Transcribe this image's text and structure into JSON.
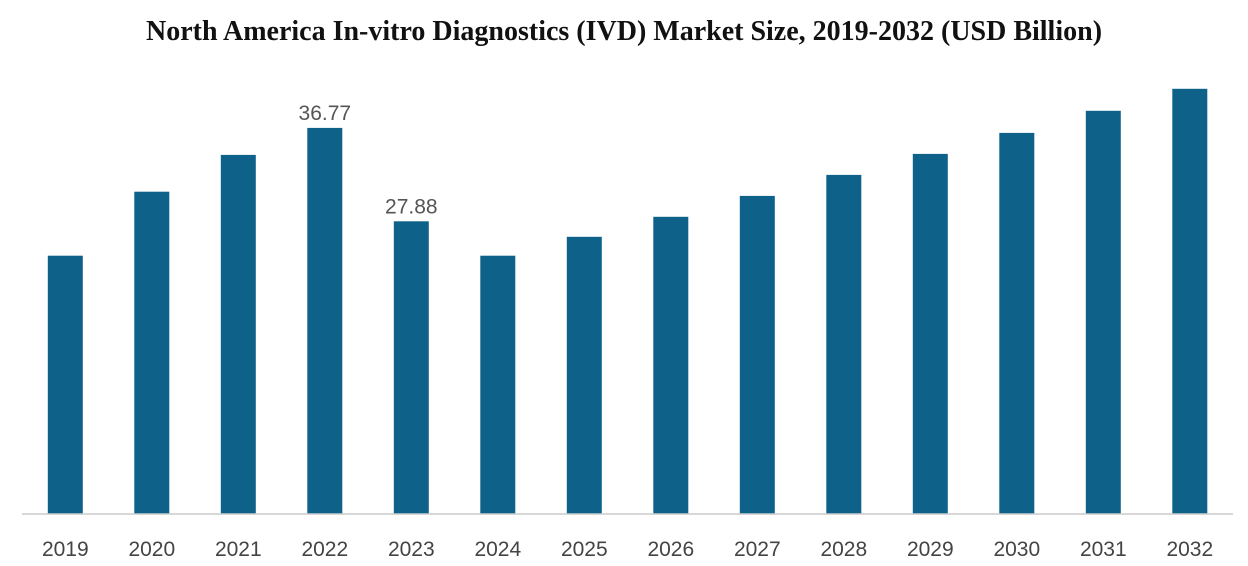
{
  "chart_data": {
    "type": "bar",
    "title": "North America In-vitro Diagnostics (IVD) Market Size, 2019-2032 (USD Billion)",
    "xlabel": "",
    "ylabel": "",
    "categories": [
      "2019",
      "2020",
      "2021",
      "2022",
      "2023",
      "2024",
      "2025",
      "2026",
      "2027",
      "2028",
      "2029",
      "2030",
      "2031",
      "2032"
    ],
    "series": [
      {
        "values": [
          24.6,
          30.7,
          34.2,
          36.77,
          27.88,
          24.6,
          26.4,
          28.3,
          30.3,
          32.3,
          34.3,
          36.3,
          38.4,
          40.5
        ]
      }
    ],
    "data_labels": [
      {
        "index": 3,
        "text": "36.77"
      },
      {
        "index": 4,
        "text": "27.88"
      }
    ],
    "ylim": [
      0,
      42
    ],
    "grid": false,
    "legend": "none",
    "colors": {
      "bar": "#0e6289",
      "axis": "#cccccc"
    }
  }
}
